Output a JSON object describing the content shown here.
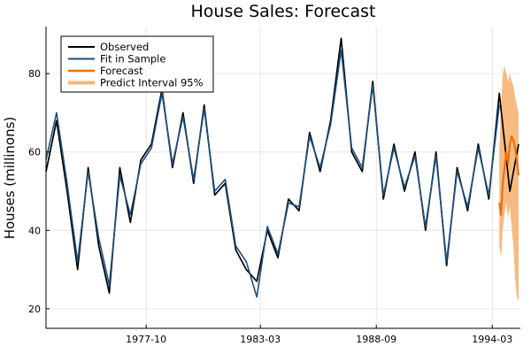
{
  "chart_data": {
    "type": "line",
    "title": "House Sales: Forecast",
    "xlabel": "",
    "ylabel": "Houses (millinons)",
    "x_range": [
      "1973-01",
      "1995-07"
    ],
    "ylim": [
      15,
      92
    ],
    "x_ticks": [
      {
        "label": "1977-10",
        "date": "1977-10"
      },
      {
        "label": "1983-03",
        "date": "1983-03"
      },
      {
        "label": "1988-09",
        "date": "1988-09"
      },
      {
        "label": "1994-03",
        "date": "1994-03"
      }
    ],
    "y_ticks": [
      20,
      40,
      60,
      80
    ],
    "grid": true,
    "legend": {
      "placement": "top-left",
      "entries": [
        "Observed",
        "Fit in Sample",
        "Forecast",
        "Predict Interval 95%"
      ]
    },
    "colors": {
      "observed": "#000000",
      "fit": "#1b4f80",
      "forecast": "#e8730f",
      "interval": "#f7b77a"
    },
    "series": [
      {
        "name": "Observed",
        "x": [
          "1973-01",
          "1973-07",
          "1974-01",
          "1974-07",
          "1975-01",
          "1975-07",
          "1976-01",
          "1976-07",
          "1977-01",
          "1977-07",
          "1978-01",
          "1978-07",
          "1979-01",
          "1979-07",
          "1980-01",
          "1980-07",
          "1981-01",
          "1981-07",
          "1982-01",
          "1982-07",
          "1983-01",
          "1983-07",
          "1984-01",
          "1984-07",
          "1985-01",
          "1985-07",
          "1986-01",
          "1986-07",
          "1987-01",
          "1987-07",
          "1988-01",
          "1988-07",
          "1989-01",
          "1989-07",
          "1990-01",
          "1990-07",
          "1991-01",
          "1991-07",
          "1992-01",
          "1992-07",
          "1993-01",
          "1993-07",
          "1994-01",
          "1994-07",
          "1995-01",
          "1995-06"
        ],
        "y": [
          55,
          68,
          50,
          30,
          56,
          36,
          24,
          56,
          42,
          58,
          62,
          76,
          56,
          70,
          52,
          72,
          49,
          52,
          35,
          30,
          27,
          40,
          33,
          48,
          45,
          65,
          55,
          68,
          89,
          60,
          55,
          78,
          48,
          62,
          50,
          60,
          40,
          60,
          31,
          56,
          45,
          62,
          48,
          75,
          50,
          62
        ]
      },
      {
        "name": "Fit in Sample",
        "x": [
          "1973-01",
          "1973-07",
          "1974-01",
          "1974-07",
          "1975-01",
          "1975-07",
          "1976-01",
          "1976-07",
          "1977-01",
          "1977-07",
          "1978-01",
          "1978-07",
          "1979-01",
          "1979-07",
          "1980-01",
          "1980-07",
          "1981-01",
          "1981-07",
          "1982-01",
          "1982-07",
          "1983-01",
          "1983-07",
          "1984-01",
          "1984-07",
          "1985-01",
          "1985-07",
          "1986-01",
          "1986-07",
          "1987-01",
          "1987-07",
          "1988-01",
          "1988-07",
          "1989-01",
          "1989-07",
          "1990-01",
          "1990-07",
          "1991-01",
          "1991-07",
          "1992-01",
          "1992-07",
          "1993-01",
          "1993-07",
          "1994-01",
          "1994-07"
        ],
        "y": [
          58,
          70,
          52,
          32,
          55,
          38,
          26,
          54,
          44,
          57,
          61,
          75,
          57,
          69,
          53,
          71,
          50,
          53,
          36,
          32,
          23,
          41,
          34,
          47,
          46,
          64,
          56,
          67,
          86,
          61,
          56,
          77,
          49,
          61,
          51,
          59,
          41,
          59,
          32,
          55,
          46,
          61,
          49,
          72
        ]
      },
      {
        "name": "Forecast",
        "x": [
          "1994-07",
          "1994-08",
          "1994-09",
          "1994-10",
          "1994-11",
          "1994-12",
          "1995-01",
          "1995-02",
          "1995-03",
          "1995-04",
          "1995-05",
          "1995-06"
        ],
        "y": [
          47,
          44,
          52,
          56,
          60,
          57,
          62,
          64,
          63,
          61,
          58,
          54
        ],
        "lower": [
          36,
          33,
          40,
          44,
          47,
          43,
          46,
          41,
          36,
          28,
          23,
          22
        ],
        "upper": [
          60,
          72,
          80,
          82,
          80,
          78,
          80,
          78,
          77,
          74,
          72,
          70
        ]
      }
    ]
  }
}
